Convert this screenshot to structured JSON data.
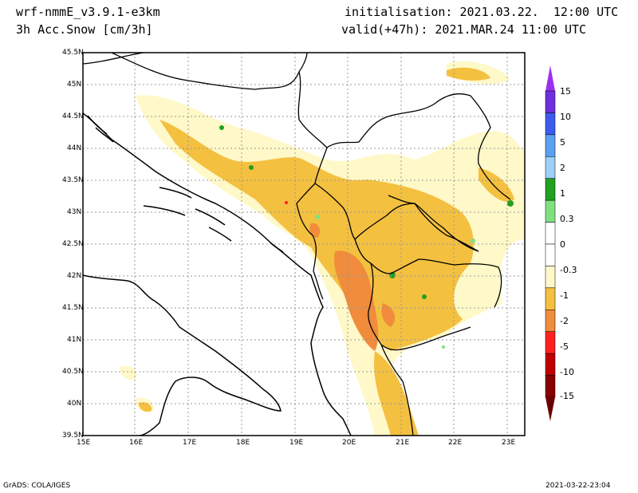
{
  "header": {
    "model": "wrf-nmmE_v3.9.1-e3km",
    "variable": "3h Acc.Snow [cm/3h]",
    "init": "initialisation: 2021.03.22.  12:00 UTC",
    "valid": "valid(+47h): 2021.MAR.24 11:00 UTC"
  },
  "axes": {
    "lat_labels": [
      "45.5N",
      "45N",
      "44.5N",
      "44N",
      "43.5N",
      "43N",
      "42.5N",
      "42N",
      "41.5N",
      "41N",
      "40.5N",
      "40N",
      "39.5N"
    ],
    "lon_labels": [
      "15E",
      "16E",
      "17E",
      "18E",
      "19E",
      "20E",
      "21E",
      "22E",
      "23E"
    ]
  },
  "colorbar": {
    "labels": [
      "15",
      "10",
      "5",
      "2",
      "1",
      "0.3",
      "0",
      "-0.3",
      "-1",
      "-2",
      "-5",
      "-10",
      "-15"
    ],
    "colors": [
      "#6f2fe0",
      "#3c5cf0",
      "#5aa0f0",
      "#9cd0f8",
      "#22a022",
      "#80e080",
      "#ffffff",
      "#ffffff",
      "#fff8c8",
      "#f4c040",
      "#f08c3c",
      "#ff2020",
      "#c00000",
      "#880000"
    ],
    "top_color": "#9a30f0",
    "bottom_color": "#6a0000"
  },
  "footer": {
    "left": "GrADS: COLA/IGES",
    "right": "2021-03-22-23:04"
  }
}
